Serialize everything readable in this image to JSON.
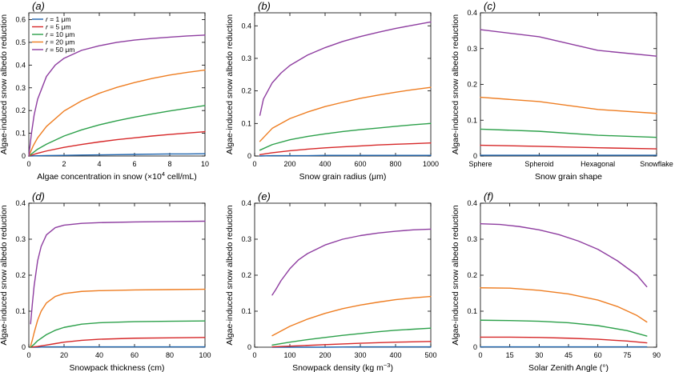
{
  "figure": {
    "colors": {
      "r1": "#1f64ad",
      "r5": "#d62728",
      "r10": "#2ca04a",
      "r20": "#ee7d21",
      "r50": "#8e3da0"
    }
  },
  "chart_data": [
    {
      "panel": "(a)",
      "type": "line",
      "xlabel_parts": [
        "Algae concentration in snow (×10",
        "4",
        " cell/mL)"
      ],
      "ylabel": "Algae-induced snow albedo reduction",
      "xlim": [
        0,
        10
      ],
      "ylim": [
        0,
        0.63
      ],
      "xticks": [
        0,
        2,
        4,
        6,
        8,
        10
      ],
      "xtick_labels": [
        "0",
        "2",
        "4",
        "6",
        "8",
        "10"
      ],
      "yticks": [
        0,
        0.1,
        0.2,
        0.3,
        0.4,
        0.5,
        0.6
      ],
      "ytick_labels": [
        "0",
        "0.1",
        "0.2",
        "0.3",
        "0.4",
        "0.5",
        "0.6"
      ],
      "legend": {
        "placement": "top-left",
        "entries": [
          {
            "prefix": "r",
            "text": " = 1 μm",
            "color_key": "r1"
          },
          {
            "prefix": "r",
            "text": " = 5 μm",
            "color_key": "r5"
          },
          {
            "prefix": "r",
            "text": " = 10 μm",
            "color_key": "r10"
          },
          {
            "prefix": "r",
            "text": " = 20 μm",
            "color_key": "r20"
          },
          {
            "prefix": "r",
            "text": " = 50 μm",
            "color_key": "r50"
          }
        ]
      },
      "series": [
        {
          "color_key": "r1",
          "x": [
            0,
            0.5,
            1,
            2,
            3,
            4,
            5,
            6,
            7,
            8,
            9,
            10
          ],
          "y": [
            0,
            0.001,
            0.002,
            0.003,
            0.004,
            0.005,
            0.006,
            0.007,
            0.008,
            0.009,
            0.009,
            0.01
          ]
        },
        {
          "color_key": "r5",
          "x": [
            0,
            0.5,
            1,
            2,
            3,
            4,
            5,
            6,
            7,
            8,
            9,
            10
          ],
          "y": [
            0,
            0.012,
            0.022,
            0.038,
            0.051,
            0.062,
            0.072,
            0.08,
            0.088,
            0.095,
            0.101,
            0.107
          ]
        },
        {
          "color_key": "r10",
          "x": [
            0,
            0.5,
            1,
            2,
            3,
            4,
            5,
            6,
            7,
            8,
            9,
            10
          ],
          "y": [
            0,
            0.03,
            0.052,
            0.088,
            0.115,
            0.137,
            0.155,
            0.171,
            0.185,
            0.198,
            0.21,
            0.222
          ]
        },
        {
          "color_key": "r20",
          "x": [
            0,
            0.25,
            0.5,
            1,
            2,
            3,
            4,
            5,
            6,
            7,
            8,
            9,
            10
          ],
          "y": [
            0,
            0.045,
            0.08,
            0.13,
            0.198,
            0.243,
            0.276,
            0.302,
            0.323,
            0.341,
            0.356,
            0.368,
            0.378
          ]
        },
        {
          "color_key": "r50",
          "x": [
            0,
            0.15,
            0.3,
            0.5,
            1,
            1.5,
            2,
            3,
            4,
            5,
            6,
            7,
            8,
            9,
            10
          ],
          "y": [
            0,
            0.1,
            0.18,
            0.25,
            0.35,
            0.4,
            0.43,
            0.465,
            0.485,
            0.5,
            0.51,
            0.517,
            0.523,
            0.528,
            0.532
          ]
        }
      ]
    },
    {
      "panel": "(b)",
      "type": "line",
      "xlabel_parts": [
        "Snow grain radius (μm)"
      ],
      "ylabel": "Algae-induced snow albedo reduction",
      "xlim": [
        0,
        1000
      ],
      "ylim": [
        0,
        0.44
      ],
      "xticks": [
        0,
        200,
        400,
        600,
        800,
        1000
      ],
      "xtick_labels": [
        "0",
        "200",
        "400",
        "600",
        "800",
        "1000"
      ],
      "yticks": [
        0,
        0.1,
        0.2,
        0.3,
        0.4
      ],
      "ytick_labels": [
        "0",
        "0.1",
        "0.2",
        "0.3",
        "0.4"
      ],
      "series": [
        {
          "color_key": "r1",
          "x": [
            30,
            100,
            200,
            300,
            400,
            500,
            600,
            700,
            800,
            900,
            1000
          ],
          "y": [
            0,
            0.001,
            0.001,
            0.001,
            0.002,
            0.002,
            0.002,
            0.002,
            0.002,
            0.002,
            0.002
          ]
        },
        {
          "color_key": "r5",
          "x": [
            30,
            100,
            200,
            300,
            400,
            500,
            600,
            700,
            800,
            900,
            1000
          ],
          "y": [
            0.004,
            0.01,
            0.016,
            0.021,
            0.025,
            0.028,
            0.031,
            0.034,
            0.036,
            0.038,
            0.04
          ]
        },
        {
          "color_key": "r10",
          "x": [
            30,
            100,
            200,
            300,
            400,
            500,
            600,
            700,
            800,
            900,
            1000
          ],
          "y": [
            0.018,
            0.035,
            0.05,
            0.06,
            0.068,
            0.075,
            0.081,
            0.086,
            0.091,
            0.096,
            0.1
          ]
        },
        {
          "color_key": "r20",
          "x": [
            30,
            100,
            200,
            300,
            400,
            500,
            600,
            700,
            800,
            900,
            1000
          ],
          "y": [
            0.045,
            0.085,
            0.115,
            0.135,
            0.152,
            0.165,
            0.177,
            0.187,
            0.196,
            0.204,
            0.211
          ]
        },
        {
          "color_key": "r50",
          "x": [
            30,
            50,
            100,
            150,
            200,
            300,
            400,
            500,
            600,
            700,
            800,
            900,
            1000
          ],
          "y": [
            0.125,
            0.175,
            0.225,
            0.255,
            0.278,
            0.31,
            0.333,
            0.352,
            0.367,
            0.38,
            0.392,
            0.402,
            0.412
          ]
        }
      ]
    },
    {
      "panel": "(c)",
      "type": "line",
      "xlabel_parts": [
        "Snow grain shape"
      ],
      "ylabel": "Algae-induced snow albedo reduction",
      "xlim": [
        0,
        3
      ],
      "ylim": [
        0,
        0.4
      ],
      "xticks": [
        0,
        1,
        2,
        3
      ],
      "xtick_labels": [
        "Sphere",
        "Spheroid",
        "Hexagonal",
        "Snowflake"
      ],
      "yticks": [
        0,
        0.1,
        0.2,
        0.3,
        0.4
      ],
      "ytick_labels": [
        "0",
        "0.1",
        "0.2",
        "0.3",
        "0.4"
      ],
      "series": [
        {
          "color_key": "r1",
          "x": [
            0,
            1,
            2,
            3
          ],
          "y": [
            0.002,
            0.002,
            0.002,
            0.002
          ]
        },
        {
          "color_key": "r5",
          "x": [
            0,
            1,
            2,
            3
          ],
          "y": [
            0.03,
            0.027,
            0.023,
            0.02
          ]
        },
        {
          "color_key": "r10",
          "x": [
            0,
            1,
            2,
            3
          ],
          "y": [
            0.075,
            0.069,
            0.058,
            0.052
          ]
        },
        {
          "color_key": "r20",
          "x": [
            0,
            1,
            2,
            3
          ],
          "y": [
            0.164,
            0.152,
            0.13,
            0.119
          ]
        },
        {
          "color_key": "r50",
          "x": [
            0,
            1,
            2,
            3
          ],
          "y": [
            0.353,
            0.333,
            0.295,
            0.279
          ]
        }
      ]
    },
    {
      "panel": "(d)",
      "type": "line",
      "xlabel_parts": [
        "Snowpack thickness (cm)"
      ],
      "ylabel": "Algae-induced snow albedo reduction",
      "xlim": [
        0,
        100
      ],
      "ylim": [
        0,
        0.4
      ],
      "xticks": [
        0,
        20,
        40,
        60,
        80,
        100
      ],
      "xtick_labels": [
        "0",
        "20",
        "40",
        "60",
        "80",
        "100"
      ],
      "yticks": [
        0,
        0.1,
        0.2,
        0.3,
        0.4
      ],
      "ytick_labels": [
        "0",
        "0.1",
        "0.2",
        "0.3",
        "0.4"
      ],
      "series": [
        {
          "color_key": "r1",
          "x": [
            1,
            5,
            10,
            20,
            30,
            40,
            60,
            80,
            100
          ],
          "y": [
            0,
            0,
            0.001,
            0.001,
            0.001,
            0.001,
            0.001,
            0.001,
            0.001
          ]
        },
        {
          "color_key": "r5",
          "x": [
            1,
            5,
            10,
            15,
            20,
            30,
            40,
            60,
            80,
            100
          ],
          "y": [
            0,
            0.002,
            0.006,
            0.01,
            0.014,
            0.019,
            0.022,
            0.025,
            0.026,
            0.027
          ]
        },
        {
          "color_key": "r10",
          "x": [
            1,
            3,
            5,
            10,
            15,
            20,
            30,
            40,
            60,
            80,
            100
          ],
          "y": [
            0,
            0.008,
            0.018,
            0.035,
            0.047,
            0.055,
            0.064,
            0.068,
            0.071,
            0.072,
            0.073
          ]
        },
        {
          "color_key": "r20",
          "x": [
            1,
            2,
            3,
            5,
            7,
            10,
            15,
            20,
            30,
            40,
            60,
            80,
            100
          ],
          "y": [
            0.003,
            0.02,
            0.04,
            0.075,
            0.1,
            0.123,
            0.141,
            0.149,
            0.155,
            0.157,
            0.159,
            0.16,
            0.161
          ]
        },
        {
          "color_key": "r50",
          "x": [
            1,
            2,
            3,
            5,
            7,
            10,
            15,
            20,
            30,
            40,
            60,
            80,
            100
          ],
          "y": [
            0.065,
            0.12,
            0.17,
            0.24,
            0.28,
            0.312,
            0.332,
            0.339,
            0.344,
            0.346,
            0.348,
            0.349,
            0.35
          ]
        }
      ]
    },
    {
      "panel": "(e)",
      "type": "line",
      "xlabel_parts": [
        "Snowpack density (kg m",
        "−3",
        ")"
      ],
      "ylabel": "Algae-induced snow albedo reduction",
      "xlim": [
        0,
        500
      ],
      "ylim": [
        0,
        0.4
      ],
      "xticks": [
        0,
        100,
        200,
        300,
        400,
        500
      ],
      "xtick_labels": [
        "0",
        "100",
        "200",
        "300",
        "400",
        "500"
      ],
      "yticks": [
        0,
        0.1,
        0.2,
        0.3,
        0.4
      ],
      "ytick_labels": [
        "0",
        "0.1",
        "0.2",
        "0.3",
        "0.4"
      ],
      "series": [
        {
          "color_key": "r1",
          "x": [
            50,
            100,
            200,
            300,
            400,
            500
          ],
          "y": [
            0,
            0,
            0,
            0.001,
            0.001,
            0.001
          ]
        },
        {
          "color_key": "r5",
          "x": [
            50,
            100,
            200,
            300,
            400,
            500
          ],
          "y": [
            0.001,
            0.003,
            0.007,
            0.011,
            0.014,
            0.016
          ]
        },
        {
          "color_key": "r10",
          "x": [
            50,
            100,
            150,
            200,
            250,
            300,
            350,
            400,
            450,
            500
          ],
          "y": [
            0.006,
            0.014,
            0.021,
            0.027,
            0.033,
            0.038,
            0.043,
            0.047,
            0.05,
            0.053
          ]
        },
        {
          "color_key": "r20",
          "x": [
            50,
            75,
            100,
            150,
            200,
            250,
            300,
            350,
            400,
            450,
            500
          ],
          "y": [
            0.032,
            0.045,
            0.058,
            0.078,
            0.094,
            0.107,
            0.117,
            0.125,
            0.132,
            0.137,
            0.141
          ]
        },
        {
          "color_key": "r50",
          "x": [
            50,
            60,
            75,
            100,
            125,
            150,
            200,
            250,
            300,
            350,
            400,
            450,
            500
          ],
          "y": [
            0.145,
            0.16,
            0.185,
            0.218,
            0.243,
            0.26,
            0.284,
            0.3,
            0.31,
            0.317,
            0.322,
            0.326,
            0.328
          ]
        }
      ]
    },
    {
      "panel": "(f)",
      "type": "line",
      "xlabel_parts": [
        "Solar Zenith Angle (°)"
      ],
      "ylabel": "Algae-induced snow albedo reduction",
      "xlim": [
        0,
        90
      ],
      "ylim": [
        0,
        0.4
      ],
      "xticks": [
        0,
        15,
        30,
        45,
        60,
        75,
        90
      ],
      "xtick_labels": [
        "0",
        "15",
        "30",
        "45",
        "60",
        "75",
        "90"
      ],
      "yticks": [
        0,
        0.1,
        0.2,
        0.3,
        0.4
      ],
      "ytick_labels": [
        "0",
        "0.1",
        "0.2",
        "0.3",
        "0.4"
      ],
      "series": [
        {
          "color_key": "r1",
          "x": [
            0,
            30,
            60,
            85
          ],
          "y": [
            0.001,
            0.001,
            0.001,
            0.001
          ]
        },
        {
          "color_key": "r5",
          "x": [
            0,
            15,
            30,
            45,
            60,
            75,
            85
          ],
          "y": [
            0.028,
            0.028,
            0.027,
            0.025,
            0.022,
            0.017,
            0.012
          ]
        },
        {
          "color_key": "r10",
          "x": [
            0,
            15,
            30,
            45,
            60,
            75,
            85
          ],
          "y": [
            0.075,
            0.074,
            0.072,
            0.068,
            0.06,
            0.046,
            0.031
          ]
        },
        {
          "color_key": "r20",
          "x": [
            0,
            15,
            30,
            45,
            60,
            70,
            80,
            85
          ],
          "y": [
            0.165,
            0.164,
            0.158,
            0.148,
            0.131,
            0.113,
            0.088,
            0.07
          ]
        },
        {
          "color_key": "r50",
          "x": [
            0,
            10,
            20,
            30,
            40,
            50,
            60,
            70,
            80,
            85
          ],
          "y": [
            0.343,
            0.341,
            0.335,
            0.326,
            0.313,
            0.295,
            0.272,
            0.24,
            0.2,
            0.168
          ]
        }
      ]
    }
  ]
}
